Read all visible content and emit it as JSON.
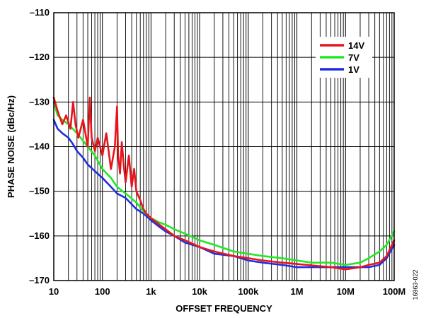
{
  "chart_data": {
    "type": "line",
    "xlabel": "OFFSET FREQUENCY",
    "ylabel": "PHASE NOISE (dBc/Hz)",
    "x_scale": "log",
    "xlim": [
      10,
      100000000
    ],
    "ylim": [
      -170,
      -110
    ],
    "x_ticks": [
      {
        "value": 10,
        "label": "10"
      },
      {
        "value": 100,
        "label": "100"
      },
      {
        "value": 1000,
        "label": "1k"
      },
      {
        "value": 10000,
        "label": "10k"
      },
      {
        "value": 100000,
        "label": "100k"
      },
      {
        "value": 1000000,
        "label": "1M"
      },
      {
        "value": 10000000,
        "label": "10M"
      },
      {
        "value": 100000000,
        "label": "100M"
      }
    ],
    "y_ticks": [
      {
        "value": -110,
        "label": "–110"
      },
      {
        "value": -120,
        "label": "–120"
      },
      {
        "value": -130,
        "label": "–130"
      },
      {
        "value": -140,
        "label": "–140"
      },
      {
        "value": -150,
        "label": "–150"
      },
      {
        "value": -160,
        "label": "–160"
      },
      {
        "value": -170,
        "label": "–170"
      }
    ],
    "grid": true,
    "legend_position": "top-right",
    "figure_id": "16963-022",
    "series": [
      {
        "name": "14V",
        "color": "#e8141b",
        "x": [
          10,
          12,
          15,
          18,
          22,
          25,
          28,
          32,
          40,
          50,
          55,
          60,
          70,
          80,
          100,
          120,
          150,
          180,
          200,
          210,
          230,
          250,
          280,
          300,
          350,
          400,
          450,
          500,
          600,
          700,
          800,
          1000,
          1500,
          2000,
          3000,
          5000,
          10000,
          20000,
          50000,
          100000,
          200000,
          500000,
          1000000,
          2000000,
          5000000,
          10000000,
          20000000,
          30000000,
          50000000,
          70000000,
          100000000
        ],
        "y": [
          -129,
          -132,
          -135,
          -133,
          -136,
          -130,
          -135,
          -138,
          -134,
          -140,
          -129,
          -138,
          -141,
          -138,
          -142,
          -137,
          -145,
          -140,
          -131,
          -142,
          -146,
          -139,
          -145,
          -148,
          -142,
          -149,
          -145,
          -150,
          -152,
          -154,
          -155,
          -156,
          -157.5,
          -158.5,
          -160,
          -161,
          -162.5,
          -163.5,
          -164.5,
          -165,
          -165.5,
          -166,
          -166.3,
          -166.6,
          -167,
          -167.5,
          -167,
          -166.5,
          -166,
          -164.5,
          -161
        ]
      },
      {
        "name": "7V",
        "color": "#22e822",
        "x": [
          10,
          12,
          15,
          20,
          30,
          50,
          70,
          100,
          150,
          200,
          300,
          500,
          700,
          1000,
          1500,
          2000,
          3000,
          5000,
          10000,
          20000,
          50000,
          100000,
          200000,
          500000,
          1000000,
          2000000,
          5000000,
          10000000,
          20000000,
          30000000,
          50000000,
          70000000,
          100000000
        ],
        "y": [
          -130,
          -133,
          -134,
          -135,
          -137,
          -140,
          -142,
          -145,
          -147,
          -149,
          -150.5,
          -152.5,
          -154.5,
          -156,
          -157,
          -157.5,
          -158.5,
          -159.5,
          -161,
          -162,
          -163.5,
          -164,
          -164.5,
          -165,
          -165.5,
          -166,
          -166,
          -166.5,
          -166,
          -165,
          -163.5,
          -162,
          -159
        ]
      },
      {
        "name": "1V",
        "color": "#1f2fe0",
        "x": [
          10,
          12,
          15,
          20,
          25,
          30,
          40,
          50,
          70,
          100,
          150,
          200,
          300,
          500,
          700,
          1000,
          1500,
          2000,
          3000,
          5000,
          10000,
          20000,
          50000,
          100000,
          200000,
          500000,
          1000000,
          2000000,
          5000000,
          10000000,
          20000000,
          30000000,
          50000000,
          70000000,
          100000000
        ],
        "y": [
          -134,
          -136,
          -137,
          -138,
          -139.5,
          -141,
          -142.5,
          -144,
          -145.5,
          -147,
          -149,
          -150.5,
          -151.5,
          -154,
          -155,
          -156.5,
          -158,
          -159,
          -160,
          -161.5,
          -162.5,
          -164,
          -164.5,
          -165.5,
          -166,
          -166.5,
          -167,
          -167,
          -167,
          -167,
          -167,
          -167,
          -166.5,
          -165,
          -162
        ]
      }
    ]
  }
}
